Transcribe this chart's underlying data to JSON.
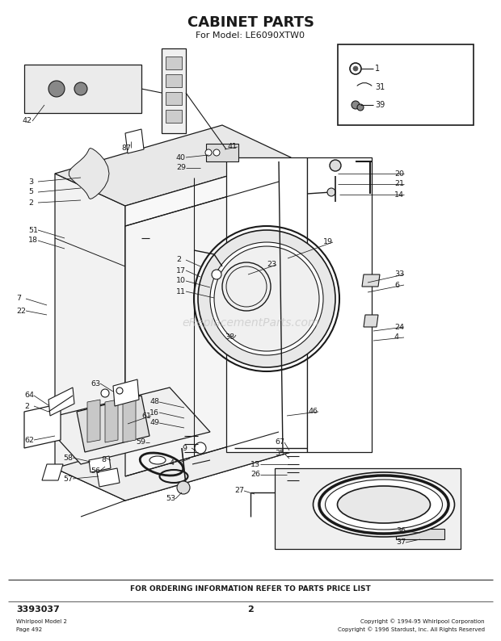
{
  "title": "CABINET PARTS",
  "subtitle": "For Model: LE6090XTW0",
  "bg_color": "#ffffff",
  "line_color": "#1a1a1a",
  "title_fontsize": 13,
  "subtitle_fontsize": 8,
  "part_number": "3393037",
  "page_number": "2",
  "footer_text": "FOR ORDERING INFORMATION REFER TO PARTS PRICE LIST",
  "bottom_left_line1": "Whirlpool Model 2",
  "bottom_left_line2": "Page 492",
  "bottom_right": "Copyright © 1994-95 Whirlpool Corporation\nCopyright © 1996 Stardust, Inc. All Rights Reserved",
  "watermark": "eReplacementParts.com"
}
